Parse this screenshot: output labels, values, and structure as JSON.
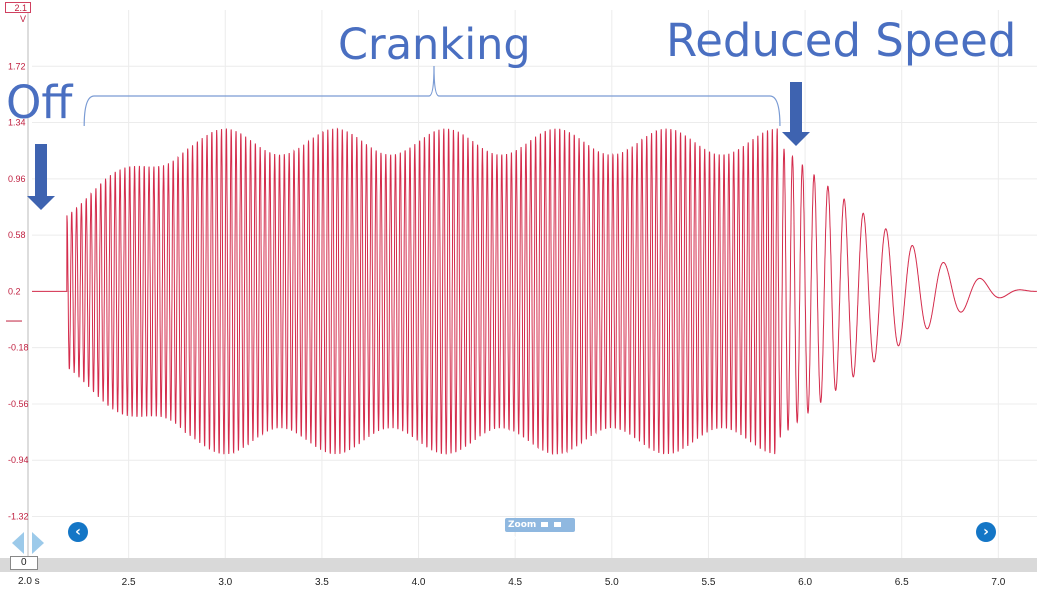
{
  "annotations": {
    "off": "Off",
    "cranking": "Cranking",
    "reduced": "Reduced Speed"
  },
  "controls": {
    "zoom_label": "Zoom",
    "nav_prev": "‹",
    "nav_next": "›",
    "offset_value": "0",
    "time_span": "2.0 s",
    "y_scale_top": "2.1",
    "y_unit": "V"
  },
  "colors": {
    "trace": "#d42c4c",
    "axis_labels": "#c02040",
    "grid": "#ececec",
    "annotation": "#4a6fc1",
    "nav": "#1476c6"
  },
  "chart_data": {
    "type": "line",
    "title": "",
    "xlabel": "",
    "ylabel": "",
    "xlim": [
      2.0,
      7.2
    ],
    "ylim": [
      -1.6,
      2.1
    ],
    "x_ticks": [
      2.5,
      3.0,
      3.5,
      4.0,
      4.5,
      5.0,
      5.5,
      6.0,
      6.5,
      7.0
    ],
    "x_tick_labels": [
      "2.5",
      "3.0",
      "3.5",
      "4.0",
      "4.5",
      "5.0",
      "5.5",
      "6.0",
      "6.5",
      "7.0"
    ],
    "y_ticks": [
      1.72,
      1.34,
      0.96,
      0.58,
      0.2,
      -0.18,
      -0.56,
      -0.94,
      -1.32
    ],
    "y_tick_labels": [
      "1.72",
      "1.34",
      "0.96",
      "0.58",
      "0.2",
      "-0.18",
      "-0.56",
      "-0.94",
      "-1.32"
    ],
    "grid": true,
    "series": [
      {
        "color": "#d42c4c",
        "phases": [
          {
            "t_start": 2.0,
            "t_end": 2.18,
            "state": "flat",
            "level": 0.2
          },
          {
            "t_start": 2.18,
            "t_end": 5.86,
            "state": "cranking",
            "center": 0.2,
            "amp_peak": 1.1,
            "cycle_s": 0.025
          },
          {
            "t_start": 5.86,
            "t_end": 7.2,
            "state": "reduced_speed",
            "center": 0.2,
            "amp_start": 1.0,
            "amp_end": 0.0
          }
        ],
        "points": [
          [
            2.0,
            0.2
          ],
          [
            2.17,
            0.2
          ],
          [
            2.2,
            0.65
          ],
          [
            2.22,
            -0.55
          ],
          [
            2.26,
            0.95
          ],
          [
            2.3,
            -0.85
          ],
          [
            2.4,
            1.05
          ],
          [
            2.5,
            -0.95
          ],
          [
            3.0,
            1.3
          ],
          [
            3.05,
            -1.0
          ],
          [
            4.0,
            1.35
          ],
          [
            4.05,
            -1.05
          ],
          [
            5.0,
            1.35
          ],
          [
            5.05,
            -1.05
          ],
          [
            5.8,
            1.25
          ],
          [
            5.82,
            -0.95
          ],
          [
            5.95,
            1.05
          ],
          [
            5.98,
            -0.75
          ],
          [
            6.1,
            0.75
          ],
          [
            6.14,
            -0.55
          ],
          [
            6.25,
            0.4
          ],
          [
            6.3,
            -0.25
          ],
          [
            6.45,
            0.25
          ],
          [
            6.5,
            0.6
          ],
          [
            6.52,
            0.0
          ],
          [
            6.75,
            0.3
          ],
          [
            6.77,
            0.5
          ],
          [
            6.8,
            0.12
          ],
          [
            6.95,
            0.22
          ],
          [
            7.2,
            0.2
          ]
        ]
      }
    ]
  }
}
